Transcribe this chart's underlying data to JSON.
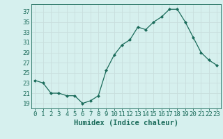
{
  "x": [
    0,
    1,
    2,
    3,
    4,
    5,
    6,
    7,
    8,
    9,
    10,
    11,
    12,
    13,
    14,
    15,
    16,
    17,
    18,
    19,
    20,
    21,
    22,
    23
  ],
  "y": [
    23.5,
    23.0,
    21.0,
    21.0,
    20.5,
    20.5,
    19.0,
    19.5,
    20.5,
    25.5,
    28.5,
    30.5,
    31.5,
    34.0,
    33.5,
    35.0,
    36.0,
    37.5,
    37.5,
    35.0,
    32.0,
    29.0,
    27.5,
    26.5
  ],
  "line_color": "#1a6b5a",
  "marker_color": "#1a6b5a",
  "bg_color": "#d6f0ee",
  "grid_color": "#c8dedd",
  "xlabel": "Humidex (Indice chaleur)",
  "ylabel_ticks": [
    19,
    21,
    23,
    25,
    27,
    29,
    31,
    33,
    35,
    37
  ],
  "xlim": [
    -0.5,
    23.5
  ],
  "ylim": [
    18.0,
    38.5
  ],
  "xlabel_color": "#1a6b5a",
  "tick_color": "#1a6b5a",
  "tick_fontsize": 6.5,
  "xlabel_fontsize": 7.5
}
